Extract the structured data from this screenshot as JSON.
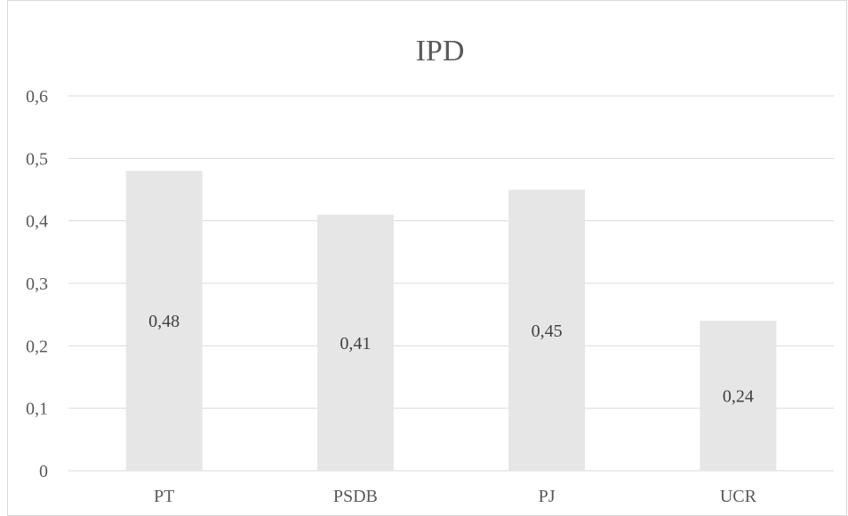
{
  "chart_data": {
    "type": "bar",
    "title": "IPD",
    "xlabel": "",
    "ylabel": "",
    "categories": [
      "PT",
      "PSDB",
      "PJ",
      "UCR"
    ],
    "values": [
      0.48,
      0.41,
      0.45,
      0.24
    ],
    "data_labels": [
      "0,48",
      "0,41",
      "0,45",
      "0,24"
    ],
    "ylim": [
      0,
      0.6
    ],
    "y_ticks": [
      {
        "value": 0,
        "label": "0"
      },
      {
        "value": 0.1,
        "label": "0,1"
      },
      {
        "value": 0.2,
        "label": "0,2"
      },
      {
        "value": 0.3,
        "label": "0,3"
      },
      {
        "value": 0.4,
        "label": "0,4"
      },
      {
        "value": 0.5,
        "label": "0,5"
      },
      {
        "value": 0.6,
        "label": "0,6"
      }
    ],
    "grid": true,
    "legend": "none",
    "colors": {
      "bar": "#e6e6e6",
      "grid": "#d9d9d9",
      "text": "#595959"
    }
  }
}
